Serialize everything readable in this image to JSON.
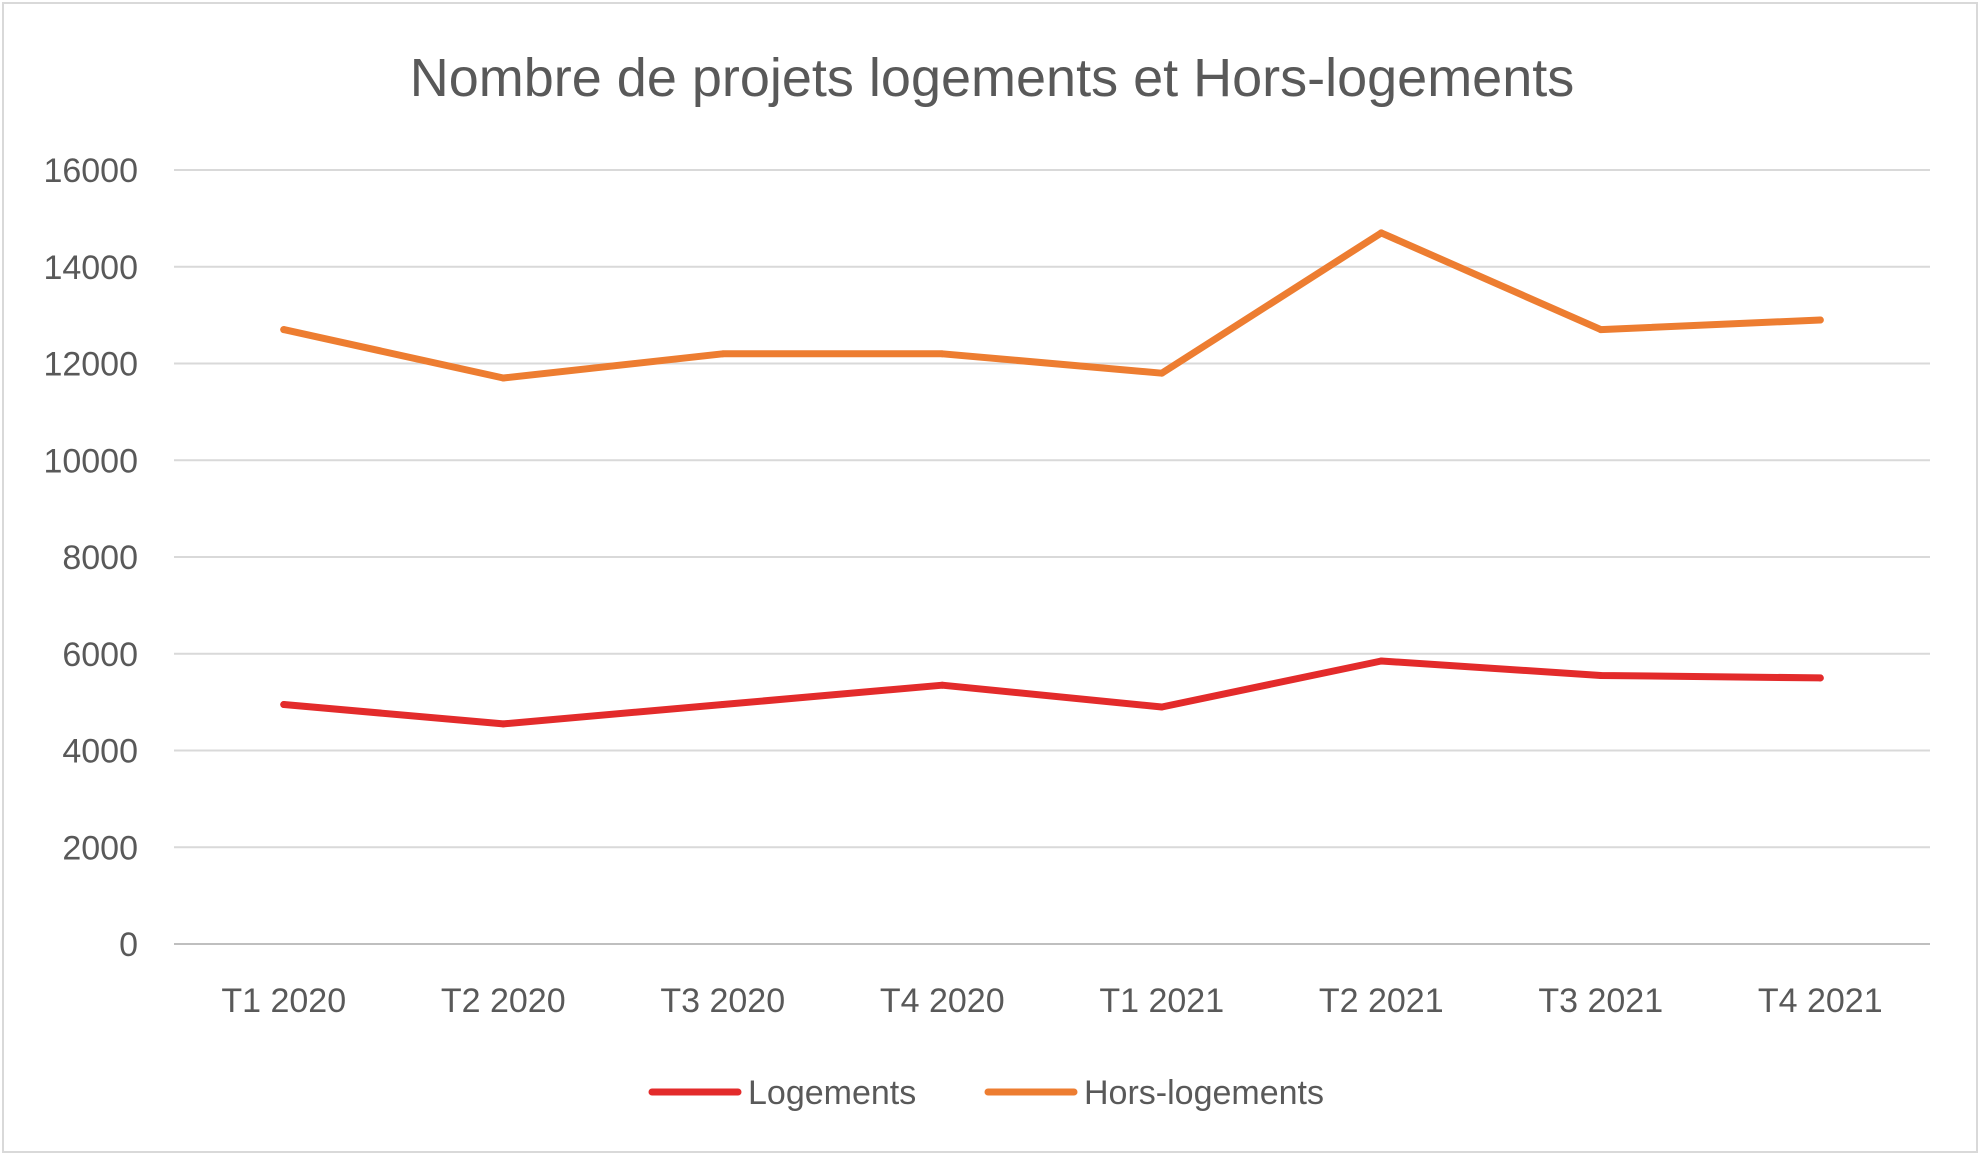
{
  "chart_data": {
    "type": "line",
    "title": "Nombre de projets logements et Hors-logements",
    "xlabel": "",
    "ylabel": "",
    "categories": [
      "T1 2020",
      "T2 2020",
      "T3 2020",
      "T4 2020",
      "T1 2021",
      "T2 2021",
      "T3 2021",
      "T4 2021"
    ],
    "series": [
      {
        "name": "Logements",
        "color": "#e32b2b",
        "values": [
          4950,
          4550,
          4950,
          5350,
          4900,
          5850,
          5550,
          5500
        ]
      },
      {
        "name": "Hors-logements",
        "color": "#ed7d31",
        "values": [
          12700,
          11700,
          12200,
          12200,
          11800,
          14700,
          12700,
          12900
        ]
      }
    ],
    "ylim": [
      0,
      16000
    ],
    "yticks": [
      "0",
      "2000",
      "4000",
      "6000",
      "8000",
      "10000",
      "12000",
      "14000",
      "16000"
    ],
    "grid": true,
    "legend_position": "bottom"
  }
}
